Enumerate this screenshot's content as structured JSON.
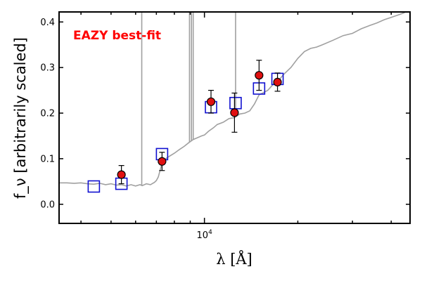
{
  "chart_data": {
    "type": "scatter",
    "title": "",
    "annotation": "EAZY best-fit",
    "xlabel": "λ [Å]",
    "ylabel": "f_ν [arbitrarily scaled]",
    "xscale": "log",
    "xlim": [
      3400,
      46000
    ],
    "ylim": [
      -0.042,
      0.422
    ],
    "x_ticks": [
      {
        "value": 10000,
        "label": "10^4"
      }
    ],
    "y_ticks": [
      0.0,
      0.1,
      0.2,
      0.3,
      0.4
    ],
    "y_tick_labels": [
      "0.0",
      "0.1",
      "0.2",
      "0.3",
      "0.4"
    ],
    "colors": {
      "annotation": "#ff0000",
      "model": "#1010d0",
      "observed": "#e01010",
      "sed": "#a0a0a0"
    },
    "series": [
      {
        "name": "model_photometry",
        "marker": "open-square",
        "x": [
          4400,
          5400,
          7300,
          10500,
          12600,
          15000,
          17200
        ],
        "y": [
          0.039,
          0.045,
          0.11,
          0.213,
          0.222,
          0.254,
          0.275
        ]
      },
      {
        "name": "observed_photometry",
        "marker": "filled-circle",
        "x": [
          5400,
          7300,
          10500,
          12500,
          15000,
          17200
        ],
        "y": [
          0.065,
          0.094,
          0.225,
          0.201,
          0.283,
          0.268
        ],
        "yerr": [
          0.02,
          0.02,
          0.025,
          0.043,
          0.033,
          0.02
        ]
      },
      {
        "name": "best_fit_sed",
        "x": [
          3400,
          3600,
          3800,
          4000,
          4200,
          4400,
          4600,
          4800,
          5000,
          5200,
          5400,
          5600,
          5800,
          6000,
          6200,
          6300,
          6500,
          6700,
          6900,
          7000,
          7100,
          7200,
          7300,
          7500,
          7700,
          8000,
          8300,
          8600,
          8900,
          9200,
          9500,
          9800,
          10000,
          10300,
          10700,
          11000,
          11500,
          12000,
          12500,
          13000,
          13500,
          14000,
          14500,
          15000,
          15500,
          16000,
          16500,
          17000,
          17500,
          18000,
          19000,
          20000,
          21000,
          22000,
          23000,
          24000,
          26000,
          28000,
          30000,
          32000,
          34000,
          36000,
          38000,
          40000,
          42000,
          44000,
          46000
        ],
        "y": [
          0.047,
          0.047,
          0.046,
          0.047,
          0.045,
          0.044,
          0.046,
          0.043,
          0.045,
          0.042,
          0.043,
          0.04,
          0.043,
          0.04,
          0.043,
          0.041,
          0.045,
          0.043,
          0.048,
          0.052,
          0.06,
          0.075,
          0.09,
          0.1,
          0.105,
          0.112,
          0.12,
          0.127,
          0.135,
          0.142,
          0.146,
          0.15,
          0.152,
          0.16,
          0.168,
          0.175,
          0.18,
          0.188,
          0.19,
          0.198,
          0.2,
          0.205,
          0.22,
          0.24,
          0.245,
          0.25,
          0.26,
          0.27,
          0.275,
          0.285,
          0.3,
          0.32,
          0.335,
          0.342,
          0.345,
          0.35,
          0.36,
          0.37,
          0.375,
          0.385,
          0.392,
          0.398,
          0.405,
          0.41,
          0.415,
          0.42,
          0.43
        ]
      },
      {
        "name": "emission_lines",
        "x": [
          6280,
          8950,
          9080,
          9200,
          12600
        ],
        "y_peak": [
          0.45,
          0.45,
          0.45,
          0.45,
          0.45
        ]
      }
    ]
  }
}
